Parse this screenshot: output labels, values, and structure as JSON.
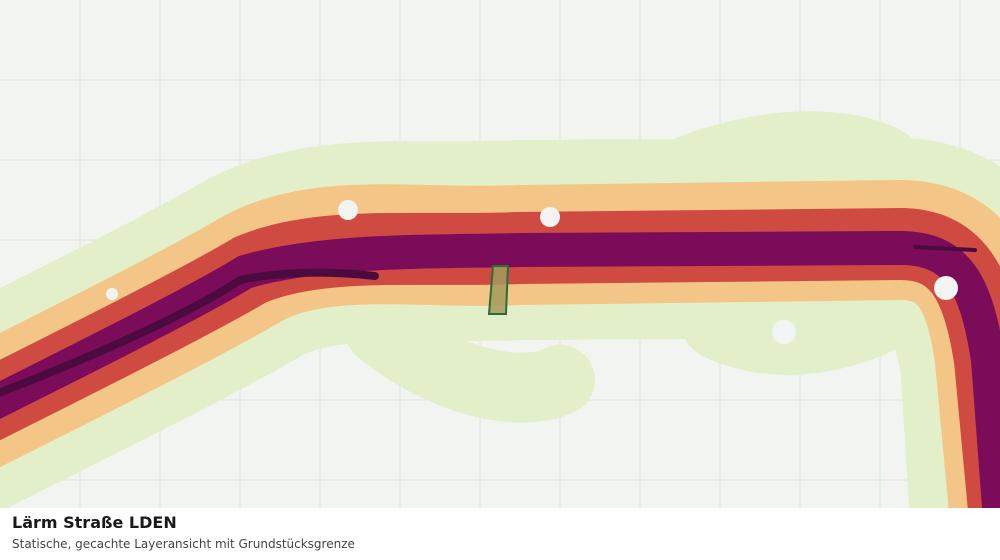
{
  "map_info": {
    "title": "Lärm Straße LDEN",
    "subtitle": "Statische, gecachte Layeransicht mit Grundstücksgrenze"
  }
}
